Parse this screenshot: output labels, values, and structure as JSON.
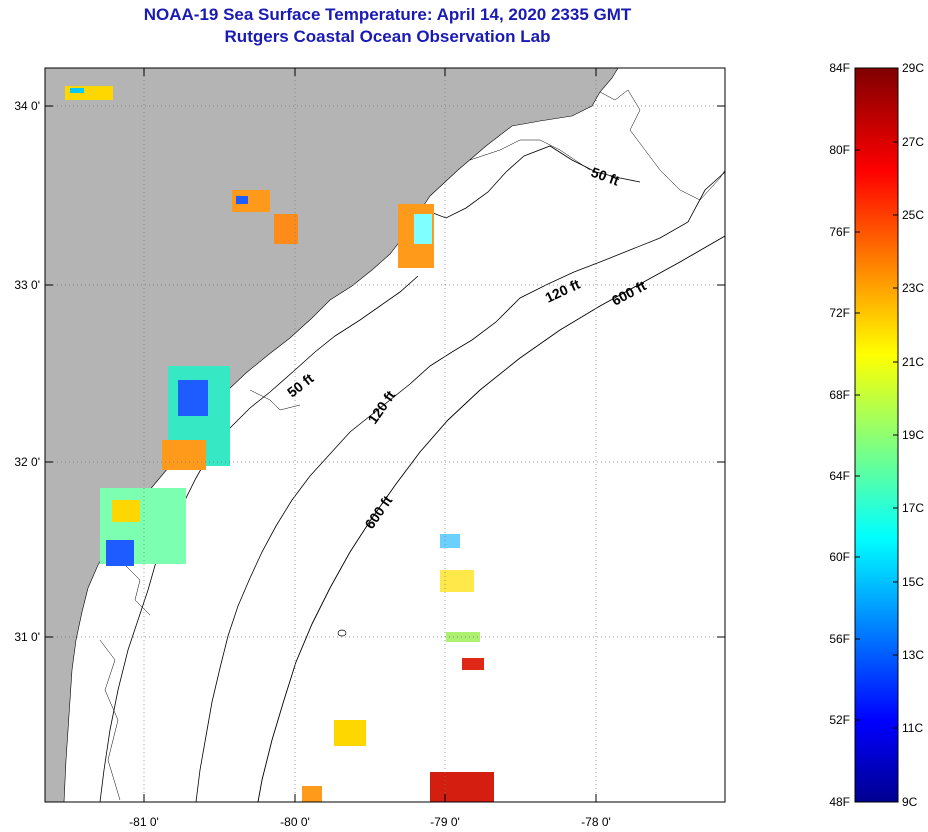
{
  "header": {
    "title": "NOAA-19 Sea Surface Temperature:  April 14, 2020 2335 GMT",
    "subtitle": "Rutgers Coastal Ocean Observation Lab"
  },
  "map": {
    "lat_labels": [
      "34 0'",
      "33 0'",
      "32 0'",
      "31 0'"
    ],
    "lon_labels": [
      "-81 0'",
      "-80 0'",
      "-79 0'",
      "-78 0'"
    ],
    "contour_labels": [
      "50 ft",
      "120 ft",
      "600 ft",
      "50 ft",
      "120 ft",
      "600 ft"
    ],
    "colors": {
      "land": "#b4b4b4",
      "ocean": "#ffffff"
    }
  },
  "colorbar": {
    "f_labels": [
      "84F",
      "80F",
      "76F",
      "72F",
      "68F",
      "64F",
      "60F",
      "56F",
      "52F",
      "48F"
    ],
    "c_labels": [
      "29C",
      "27C",
      "25C",
      "23C",
      "21C",
      "19C",
      "17C",
      "15C",
      "13C",
      "11C",
      "9C"
    ],
    "colors": [
      "#00008f",
      "#0000ff",
      "#00ffff",
      "#ffff00",
      "#ff0000",
      "#800000"
    ]
  }
}
